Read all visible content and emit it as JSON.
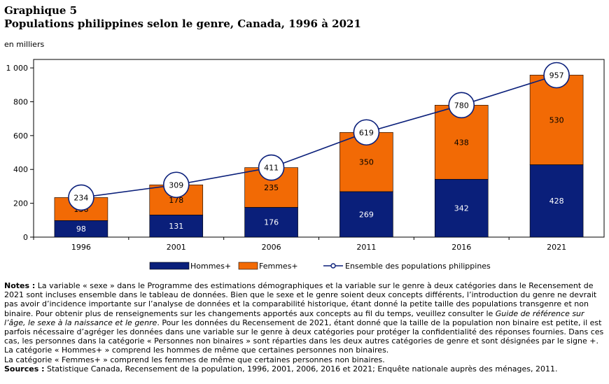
{
  "header": {
    "graph_number": "Graphique 5",
    "title": "Populations philippines selon le genre, Canada, 1996 à 2021",
    "unit": "en milliers"
  },
  "chart_data": {
    "type": "bar",
    "stacked": true,
    "categories": [
      "1996",
      "2001",
      "2006",
      "2011",
      "2016",
      "2021"
    ],
    "series": [
      {
        "name": "Hommes+",
        "type": "bar",
        "color": "#0a1f7a",
        "values": [
          98,
          131,
          176,
          269,
          342,
          428
        ]
      },
      {
        "name": "Femmes+",
        "type": "bar",
        "color": "#f26a05",
        "values": [
          136,
          178,
          235,
          350,
          438,
          530
        ]
      },
      {
        "name": "Ensemble des populations philippines",
        "type": "line",
        "color": "#0a1f7a",
        "values": [
          234,
          309,
          411,
          619,
          780,
          957
        ]
      }
    ],
    "yticks": [
      "0",
      "200",
      "400",
      "600",
      "800",
      "1 000"
    ],
    "ylim": [
      0,
      1050
    ],
    "grid": false,
    "legend": "bottom"
  },
  "notes": {
    "notes_label": "Notes :",
    "notes_text": "La variable « sexe » dans le Programme des estimations démographiques et la variable sur le genre à deux catégories dans le Recensement de 2021 sont incluses ensemble dans le tableau de données. Bien que le sexe et le genre soient deux concepts différents, l’introduction du genre ne devrait pas avoir d’incidence importante sur l’analyse de données et la comparabilité historique, étant donné la petite taille des populations transgenre et non binaire. Pour obtenir plus de renseignements sur les changements apportés aux concepts au fil du temps, veuillez consulter le",
    "guide_title": "Guide de référence sur l’âge, le sexe à la naissance et le genre",
    "notes_text_2": ". Pour les données du Recensement de 2021, étant donné que la taille de la population non binaire est petite, il est parfois nécessaire d’agréger les données dans une variable sur le genre à deux catégories pour protéger la confidentialité des réponses fournies. Dans ces cas, les personnes dans la catégorie « Personnes non binaires » sont réparties dans les deux autres catégories de genre et sont désignées par le signe +.",
    "hommes_note": "La catégorie « Hommes+ » comprend les hommes de même que certaines personnes non binaires.",
    "femmes_note": "La catégorie « Femmes+ » comprend les femmes de même que certaines personnes non binaires.",
    "sources_label": "Sources :",
    "sources_text": "Statistique Canada, Recensement de la population, 1996, 2001, 2006, 2016 et 2021; Enquête nationale auprès des ménages, 2011."
  }
}
